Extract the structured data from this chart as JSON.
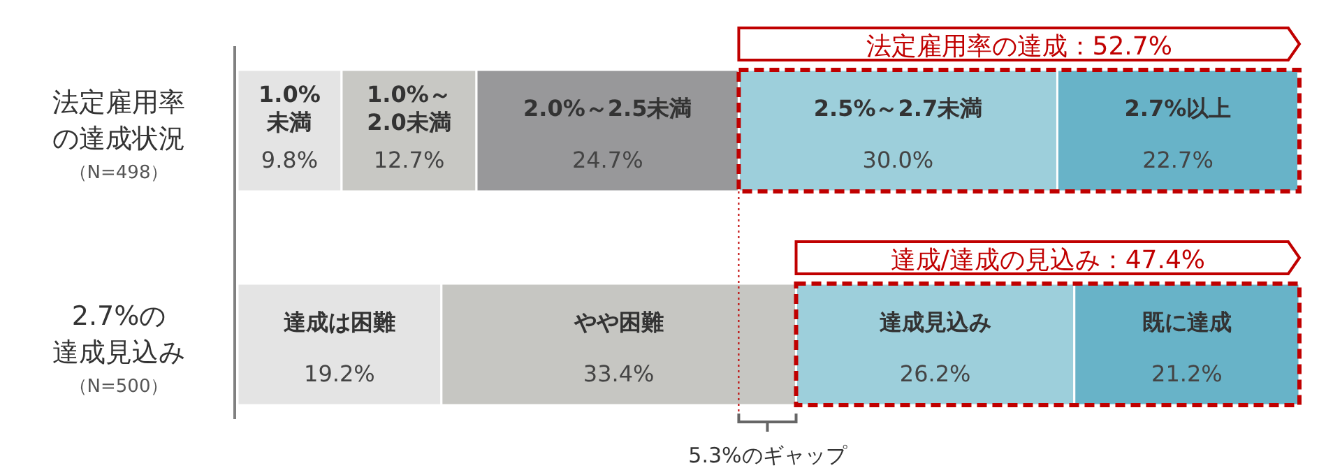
{
  "chart_data": {
    "type": "bar",
    "orientation": "horizontal",
    "stacked": true,
    "categories": [
      "法定雇用率の達成状況（N=498）",
      "2.7%の達成見込み（N=500）"
    ],
    "xlim": [
      0,
      100
    ],
    "tick_labels": "y",
    "series": [
      {
        "name": "1.0%\n未満",
        "color": "#e4e4e4",
        "values": [
          9.8,
          null
        ],
        "value_labels": [
          "9.8%",
          null
        ]
      },
      {
        "name": "1.0%～\n2.0未満",
        "color": "#c8c8c4",
        "values": [
          12.7,
          null
        ],
        "value_labels": [
          "12.7%",
          null
        ]
      },
      {
        "name": "2.0%～2.5未満",
        "color": "#98989a",
        "values": [
          24.7,
          null
        ],
        "value_labels": [
          "24.7%",
          null
        ]
      },
      {
        "name": "2.5%～2.7未満",
        "color": "#9dcfdb",
        "values": [
          30.0,
          null
        ],
        "value_labels": [
          "30.0%",
          null
        ]
      },
      {
        "name": "2.7%以上",
        "color": "#68b3c8",
        "values": [
          22.7,
          null
        ],
        "value_labels": [
          "22.7%",
          null
        ]
      },
      {
        "name": "達成は困難",
        "color": "#e4e4e4",
        "values": [
          null,
          19.2
        ],
        "value_labels": [
          null,
          "19.2%"
        ]
      },
      {
        "name": "やや困難",
        "color": "#c6c6c2",
        "values": [
          null,
          33.4
        ],
        "value_labels": [
          null,
          "33.4%"
        ]
      },
      {
        "name": "達成見込み",
        "color": "#9dcfdb",
        "values": [
          null,
          26.2
        ],
        "value_labels": [
          null,
          "26.2%"
        ]
      },
      {
        "name": "既に達成",
        "color": "#68b3c8",
        "values": [
          null,
          21.2
        ],
        "value_labels": [
          null,
          "21.2%"
        ]
      }
    ],
    "ref_lines": [
      {
        "axis": "x",
        "value": 47.2,
        "color": "#c00000",
        "line_style": "dotted"
      }
    ],
    "annotations": [
      "法定雇用率の達成：52.7%",
      "達成/達成の見込み：47.4%",
      "5.3%のギャップ"
    ]
  }
}
